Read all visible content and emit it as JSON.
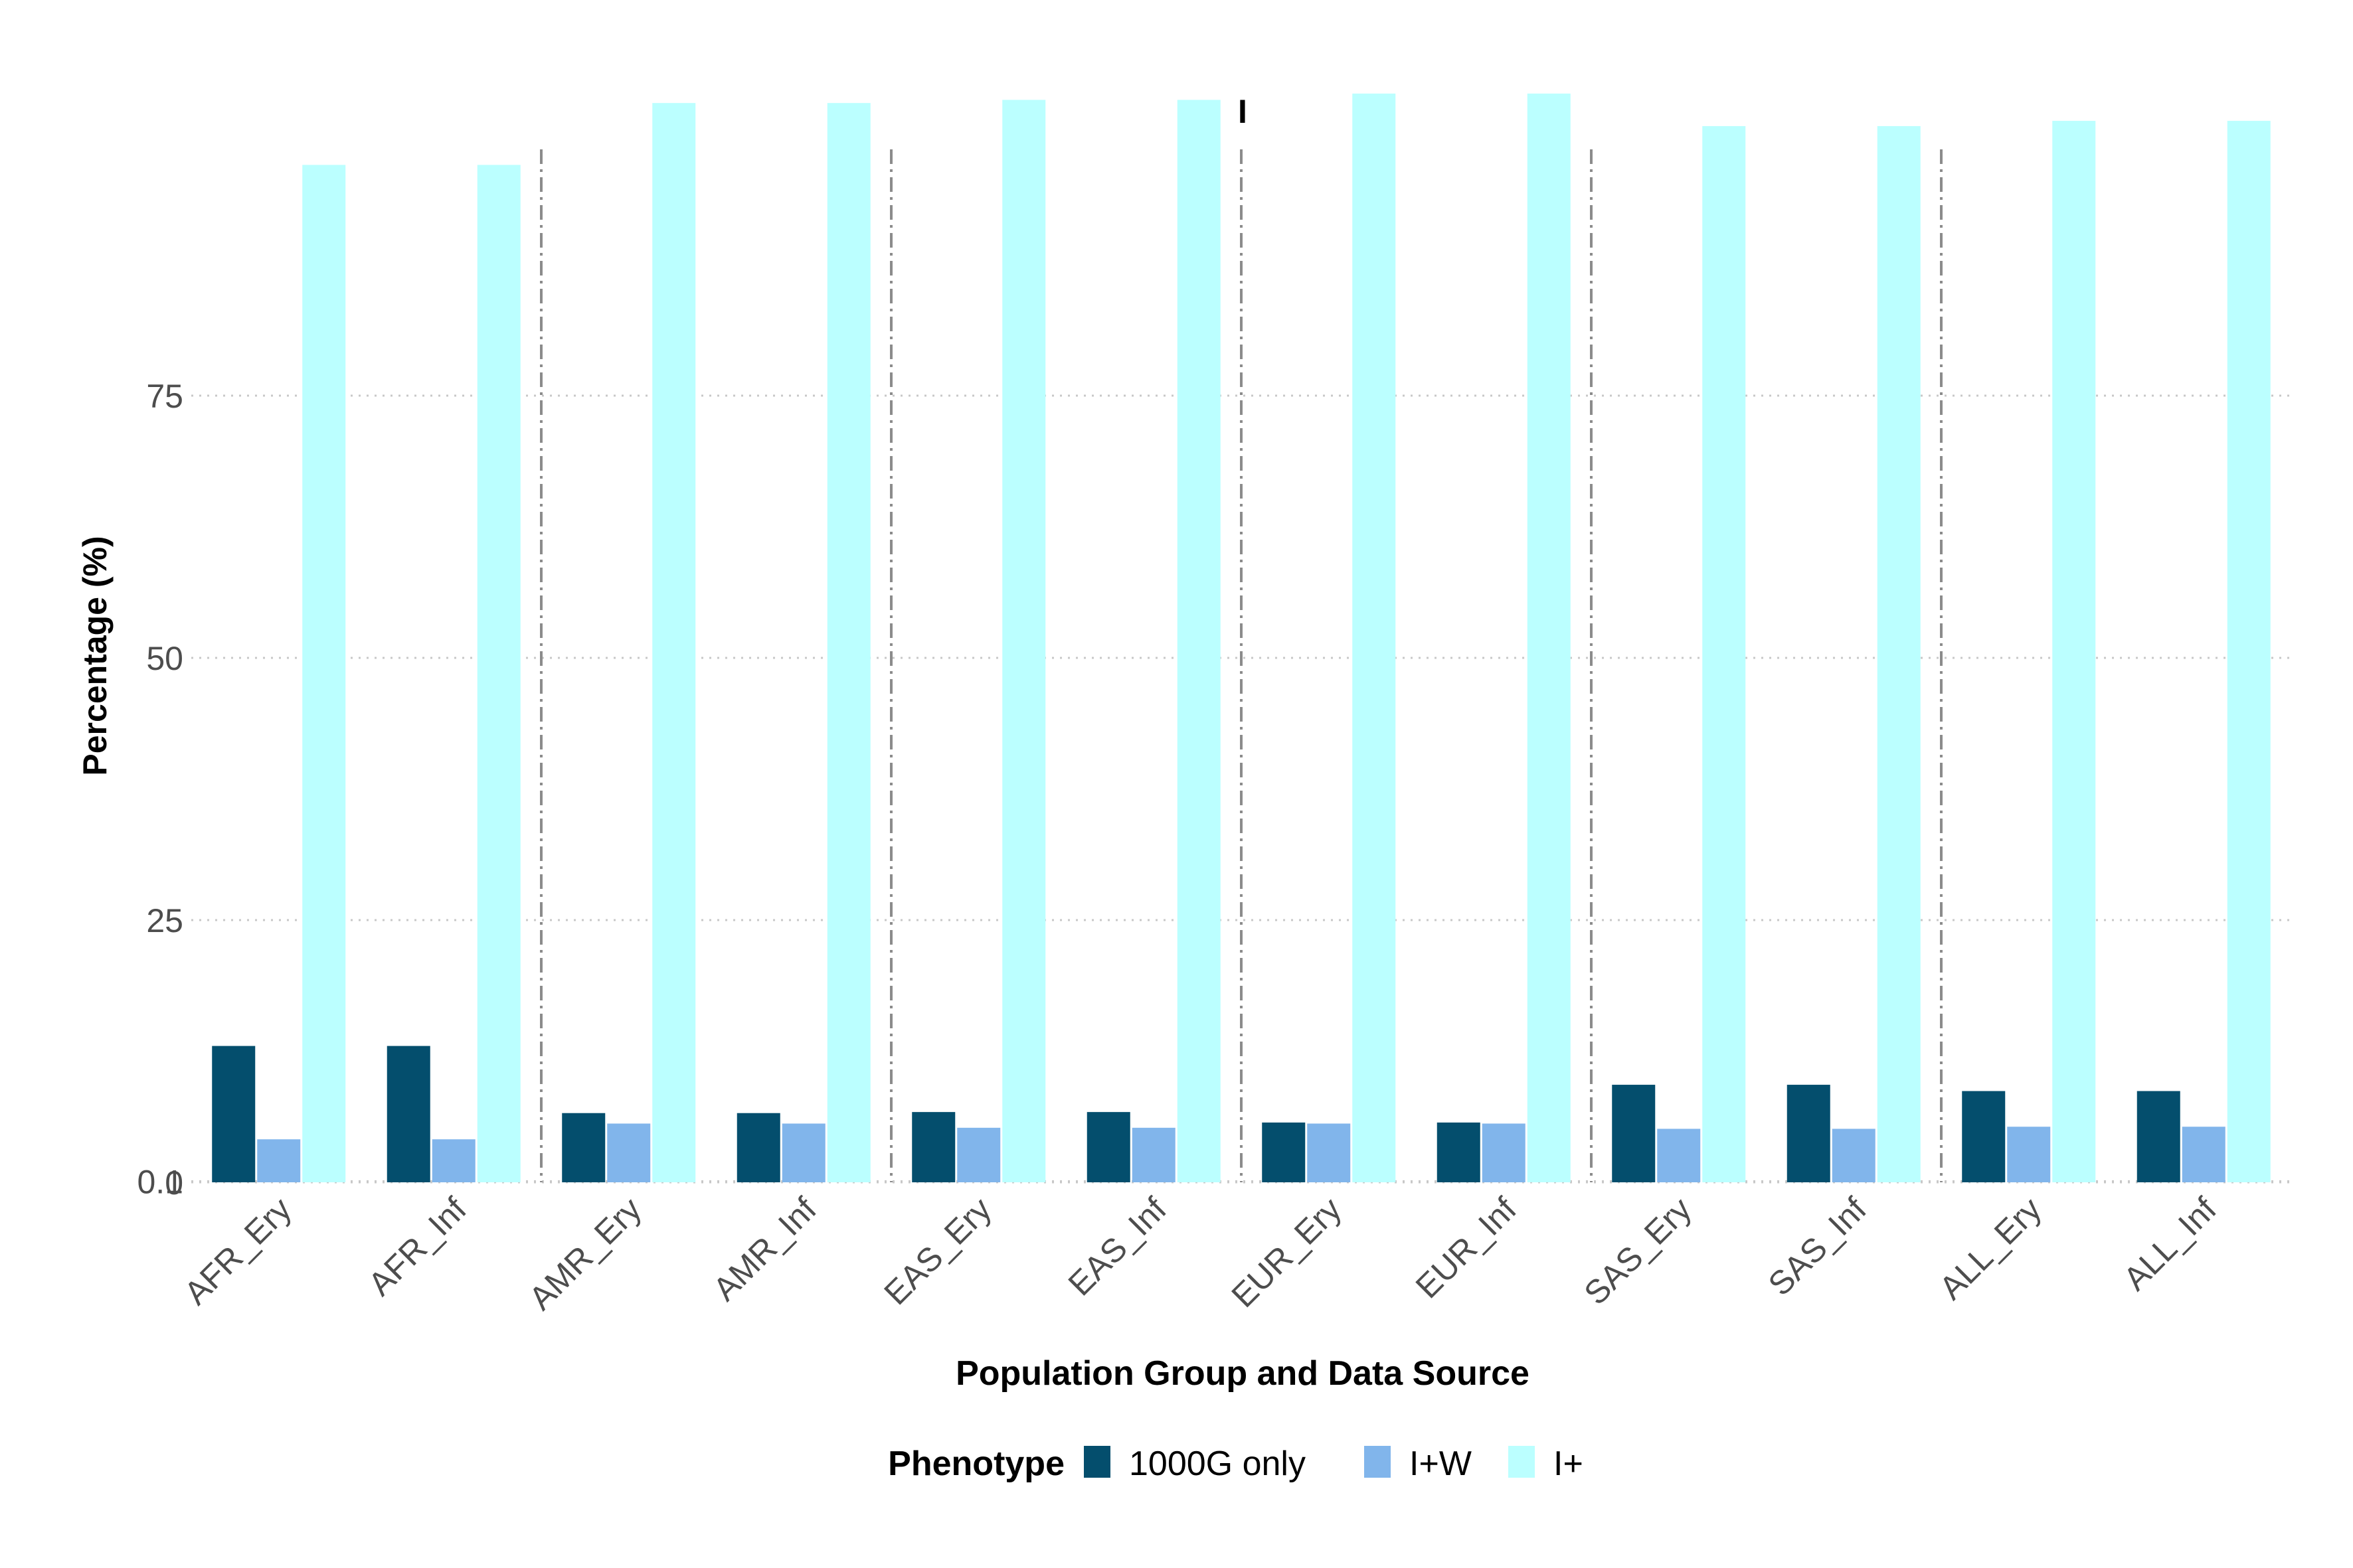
{
  "chart_data": {
    "type": "bar",
    "title": "I",
    "xlabel": "Population Group and Data Source",
    "ylabel": "Percentage (%)",
    "y_ticks": [
      0,
      0.1,
      25,
      50,
      75
    ],
    "y_tick_labels": [
      "0",
      "0.1",
      "25",
      "50",
      "75"
    ],
    "ylim": [
      0,
      104
    ],
    "grid": "horizontal dotted",
    "legend_position": "bottom",
    "legend_title": "Phenotype",
    "categories": [
      "AFR_Ery",
      "AFR_Inf",
      "AMR_Ery",
      "AMR_Inf",
      "EAS_Ery",
      "EAS_Inf",
      "EUR_Ery",
      "EUR_Inf",
      "SAS_Ery",
      "SAS_Inf",
      "ALL_Ery",
      "ALL_Inf"
    ],
    "group_separators_after": [
      "AFR_Inf",
      "AMR_Inf",
      "EAS_Inf",
      "EUR_Inf",
      "SAS_Inf"
    ],
    "series": [
      {
        "name": "1000G only",
        "color": "#044e6d",
        "values": [
          13.0,
          13.0,
          6.6,
          6.6,
          6.7,
          6.7,
          5.7,
          5.7,
          9.3,
          9.3,
          8.7,
          8.7
        ]
      },
      {
        "name": "I+W",
        "color": "#81b5eb",
        "values": [
          4.1,
          4.1,
          5.6,
          5.6,
          5.2,
          5.2,
          5.6,
          5.6,
          5.1,
          5.1,
          5.3,
          5.3
        ]
      },
      {
        "name": "I+",
        "color": "#bbffff",
        "values": [
          97.0,
          97.0,
          102.9,
          102.9,
          103.2,
          103.2,
          103.8,
          103.8,
          100.7,
          100.7,
          101.2,
          101.2
        ]
      }
    ]
  }
}
